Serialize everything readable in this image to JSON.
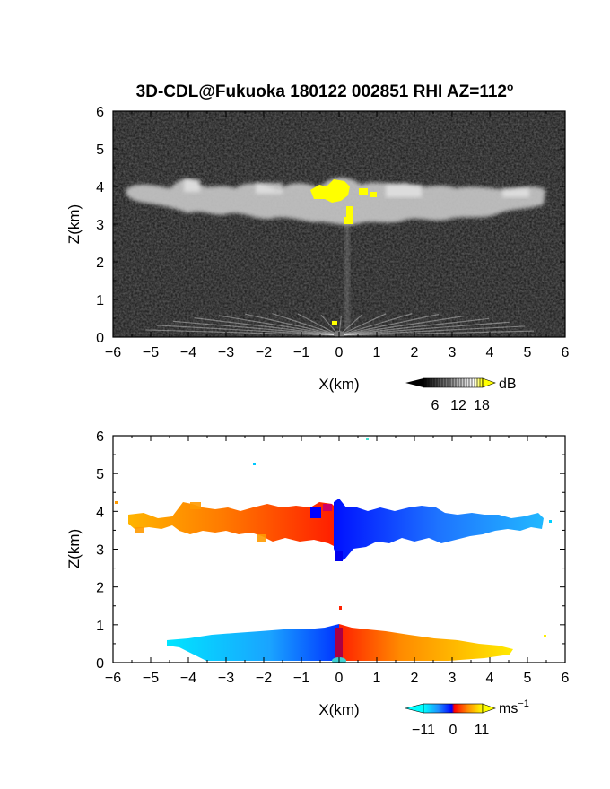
{
  "title": "3D-CDL@Fukuoka 180122 002851 RHI AZ=112",
  "title_sup": "o",
  "chart_data": [
    {
      "type": "heatmap",
      "name": "reflectivity",
      "xlabel": "X(km)",
      "ylabel": "Z(km)",
      "xlim": [
        -6,
        6
      ],
      "ylim": [
        0,
        6
      ],
      "xticks": [
        "-6",
        "-5",
        "-4",
        "-3",
        "-2",
        "-1",
        "0",
        "1",
        "2",
        "3",
        "4",
        "5",
        "6"
      ],
      "yticks": [
        "0",
        "1",
        "2",
        "3",
        "4",
        "5",
        "6"
      ],
      "background": "#1e1e1e",
      "features": [
        {
          "label": "cloud layer",
          "x_range": [
            -5.6,
            5.4
          ],
          "z_range": [
            2.9,
            4.2
          ]
        },
        {
          "label": "strong echo",
          "x_range": [
            -0.8,
            1.0
          ],
          "z_range": [
            3.0,
            4.2
          ],
          "color": "#ffff00"
        },
        {
          "label": "near-ground clutter",
          "x_range": [
            -6,
            6
          ],
          "z_range": [
            0,
            0.8
          ]
        }
      ],
      "colorbar": {
        "unit": "dB",
        "ticks": [
          "6",
          "12",
          "18"
        ],
        "range": [
          0,
          21
        ],
        "colors": [
          "#000000",
          "#ffffff",
          "#ffff00"
        ]
      }
    },
    {
      "type": "heatmap",
      "name": "doppler-velocity",
      "xlabel": "X(km)",
      "ylabel": "Z(km)",
      "xlim": [
        -6,
        6
      ],
      "ylim": [
        0,
        6
      ],
      "xticks": [
        "-6",
        "-5",
        "-4",
        "-3",
        "-2",
        "-1",
        "0",
        "1",
        "2",
        "3",
        "4",
        "5",
        "6"
      ],
      "yticks": [
        "0",
        "1",
        "2",
        "3",
        "4",
        "5",
        "6"
      ],
      "background": "#ffffff",
      "features": [
        {
          "label": "cloud layer west",
          "x_range": [
            -5.6,
            0
          ],
          "z_range": [
            2.9,
            4.2
          ],
          "velocity_range": [
            0,
            11
          ]
        },
        {
          "label": "cloud layer east",
          "x_range": [
            0,
            5.5
          ],
          "z_range": [
            2.7,
            4.3
          ],
          "velocity_range": [
            -11,
            0
          ]
        },
        {
          "label": "low layer west",
          "x_range": [
            -4.6,
            0
          ],
          "z_range": [
            0,
            0.6
          ],
          "velocity_range": [
            -11,
            -3
          ]
        },
        {
          "label": "low layer east",
          "x_range": [
            0,
            4.6
          ],
          "z_range": [
            0,
            0.6
          ],
          "velocity_range": [
            3,
            11
          ]
        }
      ],
      "colorbar": {
        "unit": "ms",
        "unit_sup": "−1",
        "ticks": [
          "−11",
          "0",
          "11"
        ],
        "range": [
          -14,
          14
        ],
        "colors": [
          "#00ffff",
          "#0000ff",
          "#ff0000",
          "#ffff00"
        ]
      }
    }
  ]
}
